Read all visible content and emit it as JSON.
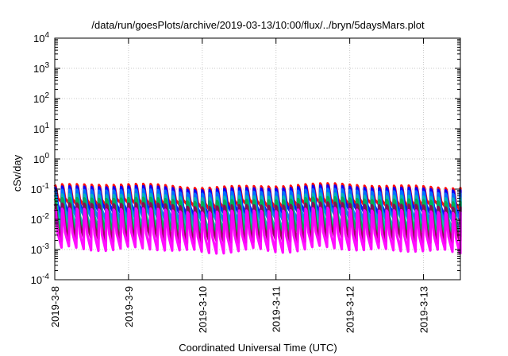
{
  "chart_data": {
    "type": "line",
    "title": "/data/run/goesPlots/archive/2019-03-13/10:00/flux/../bryn/5daysMars.plot",
    "xlabel": "Coordinated Universal Time (UTC)",
    "ylabel": "cSv/day",
    "yscale": "log",
    "ylim": [
      0.0001,
      10000
    ],
    "xlim": [
      "2019-03-08T00:00",
      "2019-03-13T12:00"
    ],
    "x_tick_labels": [
      "2019-3-8",
      "2019-3-9",
      "2019-3-10",
      "2019-3-11",
      "2019-3-12",
      "2019-3-13"
    ],
    "y_tick_labels": [
      {
        "base": "10",
        "exp": "4"
      },
      {
        "base": "10",
        "exp": "3"
      },
      {
        "base": "10",
        "exp": "2"
      },
      {
        "base": "10",
        "exp": "1"
      },
      {
        "base": "10",
        "exp": "0"
      },
      {
        "base": "10",
        "exp": "-1"
      },
      {
        "base": "10",
        "exp": "-2"
      },
      {
        "base": "10",
        "exp": "-3"
      },
      {
        "base": "10",
        "exp": "-4"
      }
    ],
    "grid": true,
    "legend": "none",
    "pattern": "sawtooth peaks every ~2.4 hours, values roughly 0.001 to 0.15 cSv/day",
    "series": [
      {
        "color": "#ff0000",
        "peak": 0.13,
        "trough": 0.035
      },
      {
        "color": "#0000ff",
        "peak": 0.11,
        "trough": 0.02
      },
      {
        "color": "#0077ff",
        "peak": 0.085,
        "trough": 0.012
      },
      {
        "color": "#00b8b8",
        "peak": 0.06,
        "trough": 0.006
      },
      {
        "color": "#00b050",
        "peak": 0.045,
        "trough": 0.004
      },
      {
        "color": "#8b0a50",
        "peak": 0.03,
        "trough": 0.0025
      },
      {
        "color": "#ff00ff",
        "peak": 0.02,
        "trough": 0.0012
      }
    ]
  }
}
